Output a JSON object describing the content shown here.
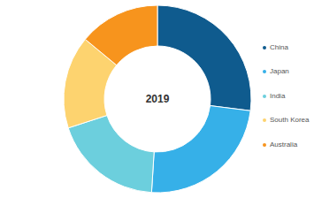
{
  "chart_data": {
    "type": "donut",
    "title": "2019",
    "categories": [
      "China",
      "Japan",
      "India",
      "South Korea",
      "Australia"
    ],
    "values": [
      27,
      24,
      19,
      16,
      14
    ],
    "colors": [
      "#0f5b8e",
      "#36b0e8",
      "#6ccfdd",
      "#fdd36f",
      "#f7941d"
    ],
    "legend": "right"
  }
}
